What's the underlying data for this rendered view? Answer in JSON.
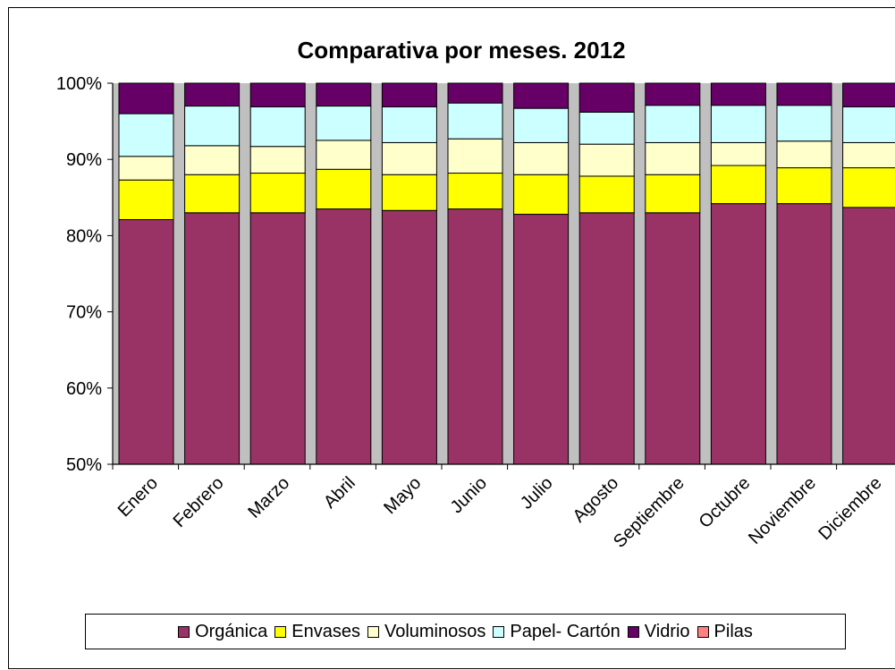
{
  "chart_data": {
    "type": "bar",
    "stacked": "percent",
    "title": "Comparativa por meses. 2012",
    "xlabel": "",
    "ylabel": "",
    "ylim": [
      50,
      100
    ],
    "ytick_labels": [
      "50%",
      "60%",
      "70%",
      "80%",
      "90%",
      "100%"
    ],
    "ytick_values": [
      50,
      60,
      70,
      80,
      90,
      100
    ],
    "categories": [
      "Enero",
      "Febrero",
      "Marzo",
      "Abril",
      "Mayo",
      "Junio",
      "Julio",
      "Agosto",
      "Septiembre",
      "Octubre",
      "Noviembre",
      "Diciembre"
    ],
    "series": [
      {
        "name": "Orgánica",
        "color": "#993366",
        "values": [
          82.1,
          83.0,
          83.0,
          83.5,
          83.3,
          83.5,
          82.8,
          83.0,
          83.0,
          84.2,
          84.2,
          83.7
        ]
      },
      {
        "name": "Envases",
        "color": "#ffff00",
        "values": [
          5.2,
          5.0,
          5.2,
          5.2,
          4.7,
          4.7,
          5.2,
          4.8,
          5.0,
          5.0,
          4.7,
          5.2
        ]
      },
      {
        "name": "Voluminosos",
        "color": "#ffffcc",
        "values": [
          3.1,
          3.8,
          3.5,
          3.8,
          4.2,
          4.5,
          4.2,
          4.2,
          4.2,
          3.0,
          3.5,
          3.3
        ]
      },
      {
        "name": "Papel- Cartón",
        "color": "#ccffff",
        "values": [
          5.6,
          5.2,
          5.2,
          4.5,
          4.7,
          4.7,
          4.5,
          4.2,
          4.9,
          4.9,
          4.7,
          4.7
        ]
      },
      {
        "name": "Vidrio",
        "color": "#660066",
        "values": [
          4.0,
          3.0,
          3.1,
          3.0,
          3.1,
          2.6,
          3.3,
          3.8,
          2.9,
          2.9,
          2.9,
          3.1
        ]
      },
      {
        "name": "Pilas",
        "color": "#ff8080",
        "values": [
          0.0,
          0.0,
          0.0,
          0.0,
          0.0,
          0.0,
          0.0,
          0.0,
          0.0,
          0.0,
          0.0,
          0.0
        ]
      }
    ],
    "plot_background": "#c0c0c0",
    "grid": false,
    "legend_position": "bottom"
  }
}
